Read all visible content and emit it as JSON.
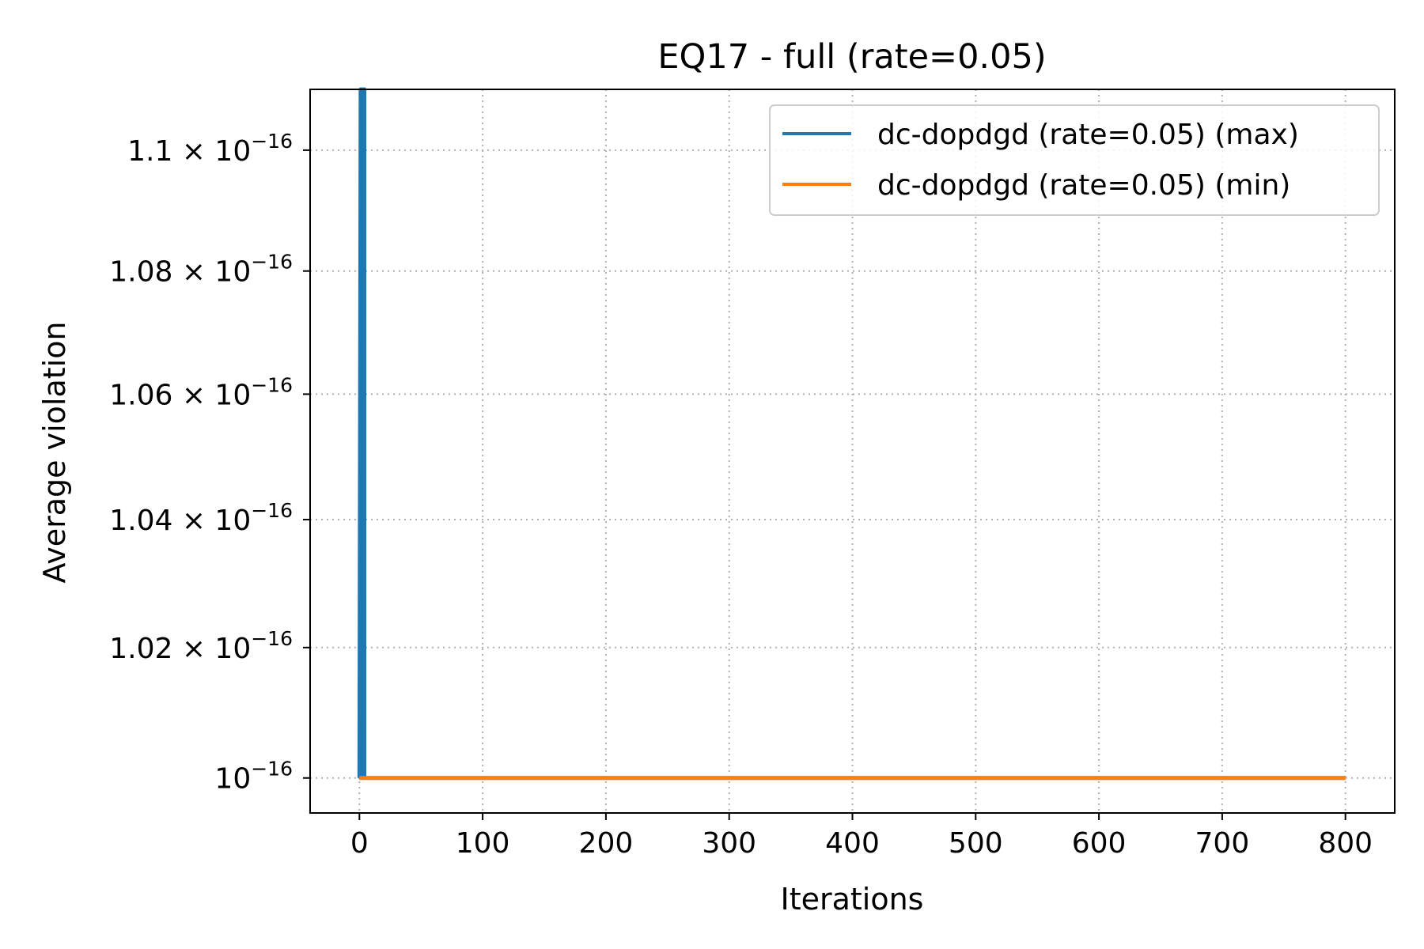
{
  "chart_data": {
    "type": "line",
    "title": "EQ17 - full (rate=0.05)",
    "xlabel": "Iterations",
    "ylabel": "Average violation",
    "xlim": [
      -40,
      840
    ],
    "ylim": [
      9.947e-17,
      1.1102e-16
    ],
    "yscale": "log",
    "xticks": [
      0,
      100,
      200,
      300,
      400,
      500,
      600,
      700,
      800
    ],
    "yticks": [
      {
        "value": 1e-16,
        "mantissa": "",
        "exponent": "−16",
        "base": "10"
      },
      {
        "value": 1.02e-16,
        "mantissa": "1.02 × ",
        "exponent": "−16",
        "base": "10"
      },
      {
        "value": 1.04e-16,
        "mantissa": "1.04 × ",
        "exponent": "−16",
        "base": "10"
      },
      {
        "value": 1.06e-16,
        "mantissa": "1.06 × ",
        "exponent": "−16",
        "base": "10"
      },
      {
        "value": 1.08e-16,
        "mantissa": "1.08 × ",
        "exponent": "−16",
        "base": "10"
      },
      {
        "value": 1.1e-16,
        "mantissa": "1.1 × ",
        "exponent": "−16",
        "base": "10"
      }
    ],
    "grid": true,
    "legend_position": "upper right",
    "series": [
      {
        "name": "dc-dopdgd (rate=0.05) (max)",
        "color": "#1f77b4",
        "x": [
          0,
          1,
          1,
          2,
          2,
          3,
          3,
          4,
          4,
          800
        ],
        "y": [
          1e-16,
          1.1102e-16,
          1e-16,
          1.1102e-16,
          1e-16,
          1.1102e-16,
          1e-16,
          1.1102e-16,
          1e-16,
          1e-16
        ]
      },
      {
        "name": "dc-dopdgd (rate=0.05) (min)",
        "color": "#ff7f0e",
        "x": [
          0,
          800
        ],
        "y": [
          1e-16,
          1e-16
        ]
      }
    ]
  }
}
